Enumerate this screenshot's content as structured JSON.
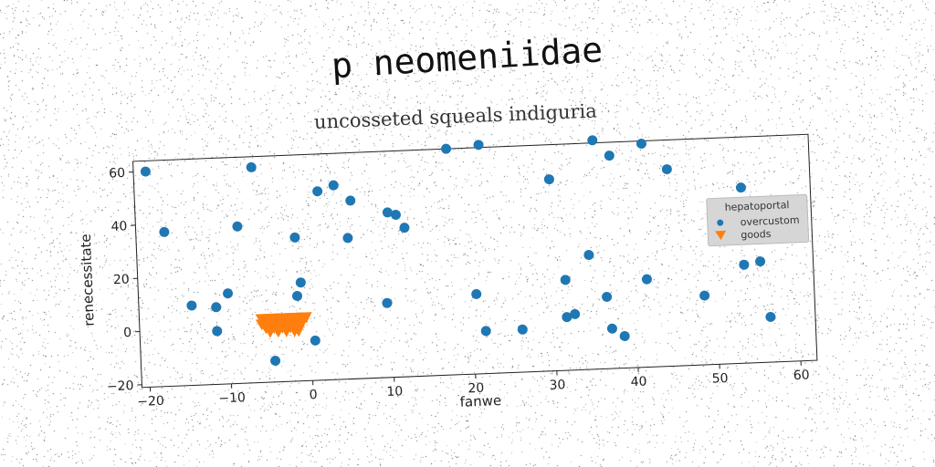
{
  "page_title": "p neomeniidae",
  "chart_data": {
    "type": "scatter",
    "title": "uncosseted squeals indiguria",
    "xlabel": "fanwe",
    "ylabel": "renecessitate",
    "xlim": [
      -21,
      62
    ],
    "ylim": [
      -21,
      64
    ],
    "xticks": [
      -20,
      -10,
      0,
      10,
      20,
      30,
      40,
      50,
      60
    ],
    "yticks": [
      -20,
      0,
      20,
      40,
      60
    ],
    "grid": false,
    "legend": {
      "title": "hepatoportal",
      "placement": "right"
    },
    "series": [
      {
        "name": "overcustom",
        "marker": "circle",
        "color": "#1f77b4",
        "points": [
          [
            -19.5,
            60
          ],
          [
            -6.5,
            60
          ],
          [
            -17.5,
            37
          ],
          [
            -8.5,
            38
          ],
          [
            -14.5,
            9
          ],
          [
            -11.5,
            8
          ],
          [
            -10,
            13
          ],
          [
            -11.5,
            -1
          ],
          [
            -1.5,
            33
          ],
          [
            -1,
            16
          ],
          [
            -1.5,
            11
          ],
          [
            1.5,
            50
          ],
          [
            3.5,
            52
          ],
          [
            5.5,
            46
          ],
          [
            5,
            32
          ],
          [
            -4.5,
            -13
          ],
          [
            0.5,
            -6
          ],
          [
            9.5,
            7
          ],
          [
            10,
            41
          ],
          [
            11,
            40
          ],
          [
            12,
            35
          ],
          [
            17.5,
            64
          ],
          [
            21.5,
            65
          ],
          [
            20.5,
            9
          ],
          [
            21.5,
            -5
          ],
          [
            26,
            -5
          ],
          [
            30,
            51
          ],
          [
            31.5,
            13
          ],
          [
            31.5,
            -1
          ],
          [
            32.5,
            0
          ],
          [
            34.5,
            22
          ],
          [
            35.5,
            65
          ],
          [
            37.5,
            59
          ],
          [
            36.5,
            6
          ],
          [
            37,
            -6
          ],
          [
            38.5,
            -9
          ],
          [
            41.5,
            63
          ],
          [
            44.5,
            53
          ],
          [
            41.5,
            12
          ],
          [
            48.5,
            5
          ],
          [
            53.5,
            45
          ],
          [
            53.5,
            16
          ],
          [
            54,
            29
          ],
          [
            55.5,
            17
          ],
          [
            56.5,
            -4
          ]
        ]
      },
      {
        "name": "goods",
        "marker": "triangle_down",
        "color": "#ff7f0e",
        "points": [
          [
            -6,
            3
          ],
          [
            -5.5,
            3
          ],
          [
            -5,
            3
          ],
          [
            -4.5,
            3
          ],
          [
            -4,
            3
          ],
          [
            -3.5,
            3
          ],
          [
            -3,
            3
          ],
          [
            -2.5,
            3
          ],
          [
            -2,
            3
          ],
          [
            -1.5,
            3
          ],
          [
            -1,
            3
          ],
          [
            -0.5,
            3
          ],
          [
            -6,
            1
          ],
          [
            -5,
            1
          ],
          [
            -4,
            1
          ],
          [
            -3,
            1
          ],
          [
            -2,
            1
          ],
          [
            -1,
            1
          ],
          [
            -5.5,
            -0.5
          ],
          [
            -4.5,
            -0.5
          ],
          [
            -3.5,
            -0.5
          ],
          [
            -2.5,
            -0.5
          ],
          [
            -1.5,
            -0.5
          ],
          [
            -5,
            -2
          ],
          [
            -4,
            -2
          ],
          [
            -3,
            -2
          ],
          [
            -2,
            -2
          ],
          [
            -1.5,
            -2
          ]
        ]
      }
    ]
  }
}
